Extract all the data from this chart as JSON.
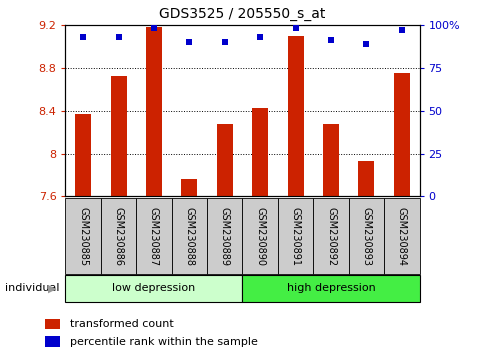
{
  "title": "GDS3525 / 205550_s_at",
  "samples": [
    "GSM230885",
    "GSM230886",
    "GSM230887",
    "GSM230888",
    "GSM230889",
    "GSM230890",
    "GSM230891",
    "GSM230892",
    "GSM230893",
    "GSM230894"
  ],
  "transformed_count": [
    8.37,
    8.72,
    9.18,
    7.76,
    8.28,
    8.42,
    9.1,
    8.28,
    7.93,
    8.75
  ],
  "percentile_rank": [
    93,
    93,
    98,
    90,
    90,
    93,
    98,
    91,
    89,
    97
  ],
  "ylim_left": [
    7.6,
    9.2
  ],
  "ylim_right": [
    0,
    100
  ],
  "yticks_left": [
    7.6,
    8.0,
    8.4,
    8.8,
    9.2
  ],
  "ytick_labels_left": [
    "7.6",
    "8",
    "8.4",
    "8.8",
    "9.2"
  ],
  "yticks_right": [
    0,
    25,
    50,
    75,
    100
  ],
  "ytick_labels_right": [
    "0",
    "25",
    "50",
    "75",
    "100%"
  ],
  "groups": [
    {
      "label": "low depression",
      "start": 0,
      "end": 5,
      "color": "#ccffcc"
    },
    {
      "label": "high depression",
      "start": 5,
      "end": 10,
      "color": "#44ee44"
    }
  ],
  "bar_color": "#cc2200",
  "dot_color": "#0000cc",
  "grid_color": "#000000",
  "label_color_red": "#cc2200",
  "label_color_blue": "#0000cc",
  "legend_red": "transformed count",
  "legend_blue": "percentile rank within the sample",
  "individual_label": "individual",
  "sample_bg_color": "#cccccc",
  "bar_bottom": 7.6,
  "bar_width": 0.45
}
